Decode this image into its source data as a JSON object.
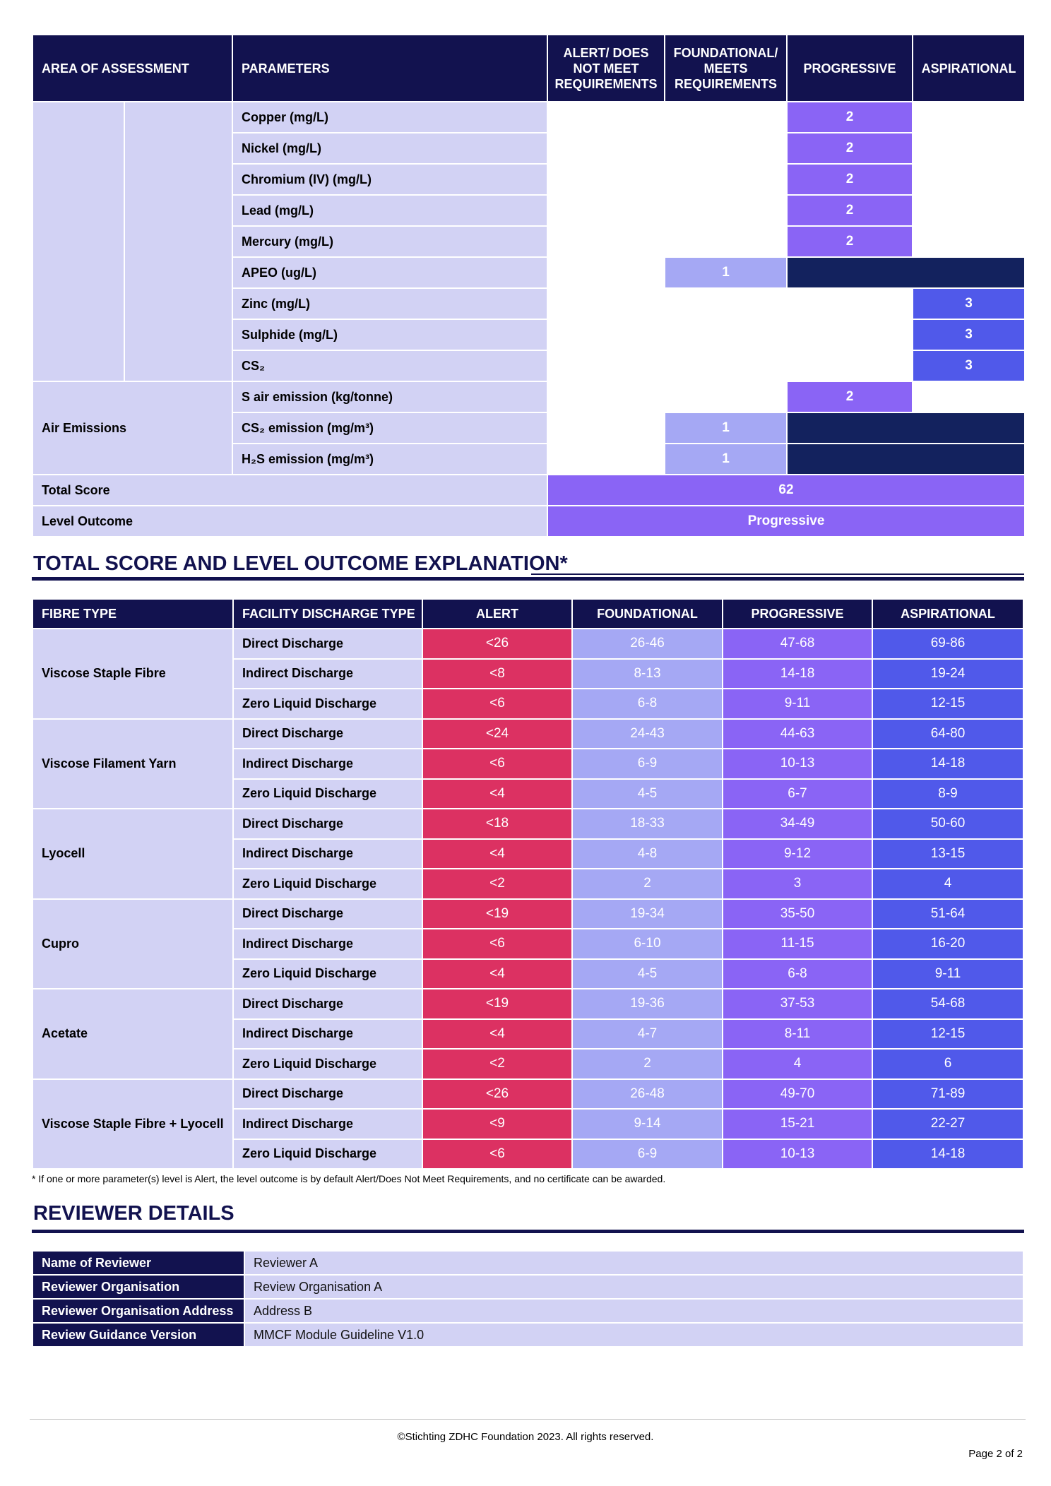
{
  "assessment": {
    "headers": {
      "area": "AREA OF ASSESSMENT",
      "parameters": "PARAMETERS",
      "alert": "ALERT/ DOES NOT MEET REQUIREMENTS",
      "foundational": "FOUNDATIONAL/ MEETS REQUIREMENTS",
      "progressive": "PROGRESSIVE",
      "aspirational": "ASPIRATIONAL"
    },
    "air_emissions_label": "Air Emissions",
    "rows": [
      {
        "name": "Copper (mg/L)",
        "score": "2"
      },
      {
        "name": "Nickel (mg/L)",
        "score": "2"
      },
      {
        "name": "Chromium (IV) (mg/L)",
        "score": "2"
      },
      {
        "name": "Lead (mg/L)",
        "score": "2"
      },
      {
        "name": "Mercury (mg/L)",
        "score": "2"
      },
      {
        "name": "APEO (ug/L)",
        "score": "1"
      },
      {
        "name": "Zinc (mg/L)",
        "score": "3"
      },
      {
        "name": "Sulphide (mg/L)",
        "score": "3"
      },
      {
        "name": "CS₂",
        "score": "3"
      },
      {
        "name": "S air emission (kg/tonne)",
        "score": "2"
      },
      {
        "name": "CS₂ emission (mg/m³)",
        "score": "1"
      },
      {
        "name": "H₂S emission (mg/m³)",
        "score": "1"
      }
    ],
    "total_score_label": "Total Score",
    "total_score": "62",
    "level_outcome_label": "Level Outcome",
    "level_outcome": "Progressive"
  },
  "explanation": {
    "title": "TOTAL SCORE AND LEVEL OUTCOME EXPLANATION*",
    "headers": [
      "FIBRE TYPE",
      "FACILITY DISCHARGE TYPE",
      "ALERT",
      "FOUNDATIONAL",
      "PROGRESSIVE",
      "ASPIRATIONAL"
    ],
    "groups": [
      {
        "fibre": "Viscose Staple Fibre",
        "rows": [
          {
            "type": "Direct Discharge",
            "alert": "<26",
            "foundational": "26-46",
            "progressive": "47-68",
            "aspirational": "69-86"
          },
          {
            "type": "Indirect Discharge",
            "alert": "<8",
            "foundational": "8-13",
            "progressive": "14-18",
            "aspirational": "19-24"
          },
          {
            "type": "Zero Liquid Discharge",
            "alert": "<6",
            "foundational": "6-8",
            "progressive": "9-11",
            "aspirational": "12-15"
          }
        ]
      },
      {
        "fibre": "Viscose Filament Yarn",
        "rows": [
          {
            "type": "Direct Discharge",
            "alert": "<24",
            "foundational": "24-43",
            "progressive": "44-63",
            "aspirational": "64-80"
          },
          {
            "type": "Indirect Discharge",
            "alert": "<6",
            "foundational": "6-9",
            "progressive": "10-13",
            "aspirational": "14-18"
          },
          {
            "type": "Zero Liquid Discharge",
            "alert": "<4",
            "foundational": "4-5",
            "progressive": "6-7",
            "aspirational": "8-9"
          }
        ]
      },
      {
        "fibre": "Lyocell",
        "rows": [
          {
            "type": "Direct Discharge",
            "alert": "<18",
            "foundational": "18-33",
            "progressive": "34-49",
            "aspirational": "50-60"
          },
          {
            "type": "Indirect Discharge",
            "alert": "<4",
            "foundational": "4-8",
            "progressive": "9-12",
            "aspirational": "13-15"
          },
          {
            "type": "Zero Liquid Discharge",
            "alert": "<2",
            "foundational": "2",
            "progressive": "3",
            "aspirational": "4"
          }
        ]
      },
      {
        "fibre": "Cupro",
        "rows": [
          {
            "type": "Direct Discharge",
            "alert": "<19",
            "foundational": "19-34",
            "progressive": "35-50",
            "aspirational": "51-64"
          },
          {
            "type": "Indirect Discharge",
            "alert": "<6",
            "foundational": "6-10",
            "progressive": "11-15",
            "aspirational": "16-20"
          },
          {
            "type": "Zero Liquid Discharge",
            "alert": "<4",
            "foundational": "4-5",
            "progressive": "6-8",
            "aspirational": "9-11"
          }
        ]
      },
      {
        "fibre": "Acetate",
        "rows": [
          {
            "type": "Direct Discharge",
            "alert": "<19",
            "foundational": "19-36",
            "progressive": "37-53",
            "aspirational": "54-68"
          },
          {
            "type": "Indirect Discharge",
            "alert": "<4",
            "foundational": "4-7",
            "progressive": "8-11",
            "aspirational": "12-15"
          },
          {
            "type": "Zero Liquid Discharge",
            "alert": "<2",
            "foundational": "2",
            "progressive": "4",
            "aspirational": "6"
          }
        ]
      },
      {
        "fibre": "Viscose Staple Fibre + Lyocell",
        "rows": [
          {
            "type": "Direct Discharge",
            "alert": "<26",
            "foundational": "26-48",
            "progressive": "49-70",
            "aspirational": "71-89"
          },
          {
            "type": "Indirect Discharge",
            "alert": "<9",
            "foundational": "9-14",
            "progressive": "15-21",
            "aspirational": "22-27"
          },
          {
            "type": "Zero Liquid Discharge",
            "alert": "<6",
            "foundational": "6-9",
            "progressive": "10-13",
            "aspirational": "14-18"
          }
        ]
      }
    ],
    "footnote": "* If one or more parameter(s) level is Alert, the level outcome is by default Alert/Does Not Meet Requirements, and no certificate can be awarded."
  },
  "reviewer": {
    "title": "REVIEWER DETAILS",
    "rows": [
      {
        "label": "Name of Reviewer",
        "value": "Reviewer A"
      },
      {
        "label": "Reviewer Organisation",
        "value": "Review Organisation A"
      },
      {
        "label": "Reviewer Organisation Address",
        "value": "Address B"
      },
      {
        "label": "Review Guidance Version",
        "value": "MMCF Module Guideline V1.0"
      }
    ]
  },
  "footer": {
    "copyright": "©Stichting ZDHC Foundation 2023. All rights reserved.",
    "page": "Page 2 of 2"
  },
  "colors": {
    "navy": "#12124f",
    "lavender": "#d2d2f4",
    "alert": "#dc3162",
    "foundational": "#a5a8f4",
    "progressive": "#8a64f5",
    "aspirational": "#5059ea",
    "not_applicable": "#13225e"
  }
}
